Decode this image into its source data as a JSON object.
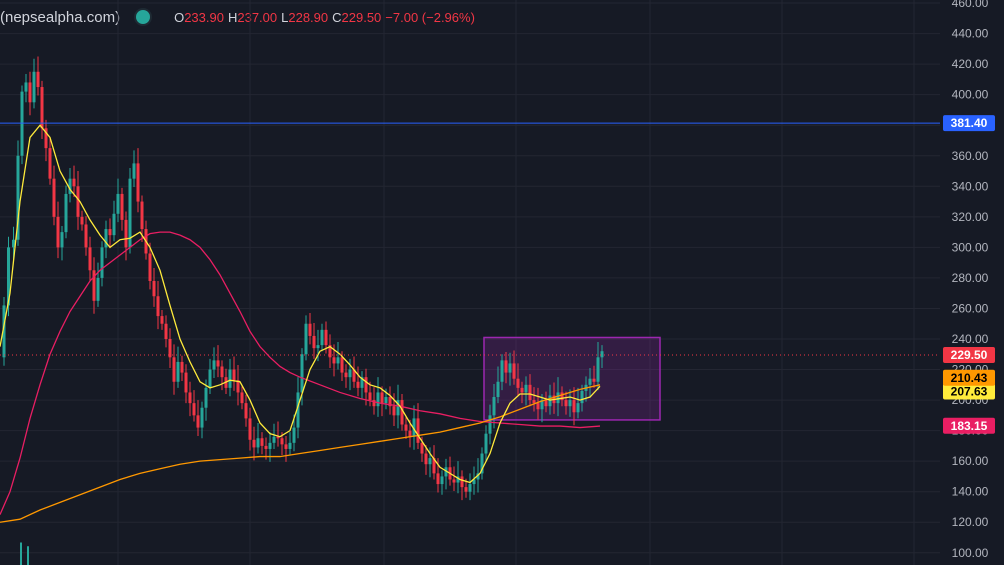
{
  "header": {
    "source": "(nepsealpha.com)",
    "open_key": "O",
    "open": "233.90",
    "high_key": "H",
    "high": "237.00",
    "low_key": "L",
    "low": "228.90",
    "close_key": "C",
    "close": "229.50",
    "change": "−7.00 (−2.96%)"
  },
  "chart_data": {
    "type": "candlestick",
    "y_axis": {
      "range": [
        92,
        462
      ],
      "ticks": [
        100,
        120,
        140,
        160,
        180,
        200,
        220,
        240,
        260,
        280,
        300,
        320,
        340,
        360,
        380,
        400,
        420,
        440,
        460
      ],
      "tick_labels": [
        "100.00",
        "120.00",
        "140.00",
        "160.00",
        "180.00",
        "200.00",
        "220.00",
        "240.00",
        "260.00",
        "280.00",
        "300.00",
        "320.00",
        "340.00",
        "360.00",
        "380.00",
        "400.00",
        "420.00",
        "440.00",
        "460.00"
      ],
      "position": "right"
    },
    "x_axis": {
      "labels": []
    },
    "horizontal_line": {
      "value": 381.4,
      "label": "381.40",
      "color": "#2962ff"
    },
    "last_price": {
      "value": 229.5,
      "label": "229.50",
      "color": "#f23645"
    },
    "ma_labels": [
      {
        "name": "fast_ma",
        "value": 207.63,
        "label": "207.63",
        "color": "#ffeb3b",
        "text_color": "#000000"
      },
      {
        "name": "slow_ma_orange",
        "value": 210.43,
        "label": "210.43",
        "color": "#ff9800",
        "text_color": "#000000"
      },
      {
        "name": "slow_ma_pink",
        "value": 183.15,
        "label": "183.15",
        "color": "#e91e63",
        "text_color": "#ffffff"
      }
    ],
    "rectangle": {
      "price_top": 241,
      "price_bottom": 187,
      "color": "#9c27b0"
    },
    "colors": {
      "up": "#26a69a",
      "down": "#f23645",
      "grid": "#232632",
      "axis_text": "#b2b5be"
    },
    "volume_bars": [
      {
        "value": 0.9,
        "direction": "up"
      },
      {
        "value": 0.75,
        "direction": "up"
      }
    ],
    "price_path": [
      [
        0,
        228
      ],
      [
        4,
        262
      ],
      [
        9,
        300
      ],
      [
        14,
        305
      ],
      [
        18,
        360
      ],
      [
        22,
        402
      ],
      [
        26,
        408
      ],
      [
        30,
        395
      ],
      [
        34,
        415
      ],
      [
        38,
        405
      ],
      [
        42,
        378
      ],
      [
        46,
        365
      ],
      [
        50,
        345
      ],
      [
        54,
        320
      ],
      [
        58,
        300
      ],
      [
        62,
        310
      ],
      [
        66,
        335
      ],
      [
        70,
        345
      ],
      [
        74,
        340
      ],
      [
        78,
        320
      ],
      [
        82,
        315
      ],
      [
        86,
        300
      ],
      [
        90,
        285
      ],
      [
        94,
        265
      ],
      [
        98,
        280
      ],
      [
        102,
        300
      ],
      [
        106,
        312
      ],
      [
        110,
        308
      ],
      [
        114,
        322
      ],
      [
        118,
        335
      ],
      [
        122,
        318
      ],
      [
        126,
        300
      ],
      [
        130,
        345
      ],
      [
        134,
        355
      ],
      [
        138,
        330
      ],
      [
        142,
        312
      ],
      [
        146,
        296
      ],
      [
        150,
        278
      ],
      [
        154,
        268
      ],
      [
        158,
        255
      ],
      [
        162,
        250
      ],
      [
        166,
        240
      ],
      [
        170,
        228
      ],
      [
        174,
        212
      ],
      [
        178,
        225
      ],
      [
        182,
        218
      ],
      [
        186,
        205
      ],
      [
        190,
        198
      ],
      [
        194,
        190
      ],
      [
        198,
        182
      ],
      [
        202,
        195
      ],
      [
        206,
        208
      ],
      [
        210,
        220
      ],
      [
        214,
        226
      ],
      [
        218,
        222
      ],
      [
        222,
        215
      ],
      [
        226,
        208
      ],
      [
        230,
        220
      ],
      [
        234,
        213
      ],
      [
        238,
        205
      ],
      [
        242,
        198
      ],
      [
        246,
        188
      ],
      [
        250,
        174
      ],
      [
        254,
        169
      ],
      [
        258,
        175
      ],
      [
        262,
        170
      ],
      [
        266,
        168
      ],
      [
        270,
        172
      ],
      [
        274,
        176
      ],
      [
        278,
        175
      ],
      [
        282,
        171
      ],
      [
        286,
        168
      ],
      [
        290,
        172
      ],
      [
        294,
        182
      ],
      [
        298,
        205
      ],
      [
        302,
        230
      ],
      [
        306,
        250
      ],
      [
        310,
        242
      ],
      [
        314,
        234
      ],
      [
        318,
        236
      ],
      [
        322,
        246
      ],
      [
        326,
        236
      ],
      [
        330,
        228
      ],
      [
        334,
        224
      ],
      [
        338,
        228
      ],
      [
        342,
        218
      ],
      [
        346,
        215
      ],
      [
        350,
        220
      ],
      [
        354,
        212
      ],
      [
        358,
        208
      ],
      [
        362,
        215
      ],
      [
        366,
        205
      ],
      [
        370,
        200
      ],
      [
        374,
        196
      ],
      [
        378,
        205
      ],
      [
        382,
        198
      ],
      [
        386,
        202
      ],
      [
        390,
        196
      ],
      [
        394,
        190
      ],
      [
        398,
        200
      ],
      [
        402,
        184
      ],
      [
        406,
        180
      ],
      [
        410,
        176
      ],
      [
        414,
        188
      ],
      [
        418,
        172
      ],
      [
        422,
        165
      ],
      [
        426,
        158
      ],
      [
        430,
        162
      ],
      [
        434,
        152
      ],
      [
        438,
        145
      ],
      [
        442,
        150
      ],
      [
        446,
        156
      ],
      [
        450,
        148
      ],
      [
        454,
        146
      ],
      [
        458,
        150
      ],
      [
        462,
        143
      ],
      [
        466,
        140
      ],
      [
        470,
        145
      ],
      [
        474,
        148
      ],
      [
        478,
        152
      ],
      [
        482,
        165
      ],
      [
        486,
        178
      ],
      [
        490,
        190
      ],
      [
        494,
        202
      ],
      [
        498,
        212
      ],
      [
        502,
        226
      ],
      [
        506,
        218
      ],
      [
        510,
        224
      ],
      [
        514,
        214
      ],
      [
        518,
        208
      ],
      [
        522,
        205
      ],
      [
        526,
        210
      ],
      [
        530,
        200
      ],
      [
        534,
        198
      ],
      [
        538,
        194
      ],
      [
        542,
        200
      ],
      [
        546,
        196
      ],
      [
        550,
        203
      ],
      [
        554,
        198
      ],
      [
        558,
        205
      ],
      [
        562,
        200
      ],
      [
        566,
        196
      ],
      [
        570,
        200
      ],
      [
        574,
        192
      ],
      [
        578,
        198
      ],
      [
        582,
        206
      ],
      [
        586,
        210
      ],
      [
        590,
        214
      ],
      [
        594,
        212
      ],
      [
        598,
        228
      ],
      [
        602,
        232
      ]
    ],
    "fast_ma_path": [
      [
        0,
        235
      ],
      [
        10,
        270
      ],
      [
        20,
        330
      ],
      [
        30,
        372
      ],
      [
        40,
        380
      ],
      [
        50,
        372
      ],
      [
        60,
        350
      ],
      [
        70,
        338
      ],
      [
        80,
        330
      ],
      [
        90,
        318
      ],
      [
        100,
        308
      ],
      [
        110,
        300
      ],
      [
        120,
        305
      ],
      [
        130,
        306
      ],
      [
        140,
        310
      ],
      [
        150,
        300
      ],
      [
        160,
        285
      ],
      [
        170,
        262
      ],
      [
        180,
        240
      ],
      [
        190,
        225
      ],
      [
        200,
        212
      ],
      [
        210,
        208
      ],
      [
        220,
        210
      ],
      [
        230,
        213
      ],
      [
        240,
        212
      ],
      [
        250,
        200
      ],
      [
        260,
        185
      ],
      [
        270,
        178
      ],
      [
        280,
        176
      ],
      [
        290,
        180
      ],
      [
        300,
        200
      ],
      [
        310,
        220
      ],
      [
        320,
        232
      ],
      [
        330,
        235
      ],
      [
        340,
        230
      ],
      [
        350,
        223
      ],
      [
        360,
        215
      ],
      [
        370,
        210
      ],
      [
        380,
        208
      ],
      [
        390,
        203
      ],
      [
        400,
        196
      ],
      [
        410,
        185
      ],
      [
        420,
        175
      ],
      [
        430,
        165
      ],
      [
        440,
        156
      ],
      [
        450,
        152
      ],
      [
        460,
        148
      ],
      [
        470,
        146
      ],
      [
        480,
        152
      ],
      [
        490,
        165
      ],
      [
        500,
        185
      ],
      [
        510,
        198
      ],
      [
        520,
        204
      ],
      [
        530,
        204
      ],
      [
        540,
        202
      ],
      [
        550,
        200
      ],
      [
        560,
        201
      ],
      [
        570,
        202
      ],
      [
        580,
        200
      ],
      [
        590,
        202
      ],
      [
        600,
        209
      ]
    ],
    "slow_ma_orange_path": [
      [
        0,
        120
      ],
      [
        20,
        122
      ],
      [
        40,
        128
      ],
      [
        60,
        133
      ],
      [
        80,
        138
      ],
      [
        100,
        143
      ],
      [
        120,
        148
      ],
      [
        140,
        152
      ],
      [
        160,
        155
      ],
      [
        180,
        158
      ],
      [
        200,
        160
      ],
      [
        220,
        161
      ],
      [
        240,
        162
      ],
      [
        260,
        163
      ],
      [
        280,
        163
      ],
      [
        300,
        165
      ],
      [
        320,
        167
      ],
      [
        340,
        169
      ],
      [
        360,
        171
      ],
      [
        380,
        173
      ],
      [
        400,
        175
      ],
      [
        420,
        177
      ],
      [
        440,
        179
      ],
      [
        460,
        182
      ],
      [
        480,
        185
      ],
      [
        500,
        189
      ],
      [
        520,
        194
      ],
      [
        540,
        199
      ],
      [
        560,
        203
      ],
      [
        580,
        207
      ],
      [
        600,
        210
      ]
    ],
    "slow_ma_pink_path": [
      [
        0,
        125
      ],
      [
        10,
        140
      ],
      [
        20,
        162
      ],
      [
        30,
        188
      ],
      [
        40,
        210
      ],
      [
        50,
        230
      ],
      [
        60,
        245
      ],
      [
        70,
        258
      ],
      [
        80,
        268
      ],
      [
        90,
        278
      ],
      [
        100,
        285
      ],
      [
        110,
        290
      ],
      [
        120,
        295
      ],
      [
        130,
        300
      ],
      [
        140,
        305
      ],
      [
        150,
        309
      ],
      [
        160,
        310
      ],
      [
        170,
        310
      ],
      [
        180,
        308
      ],
      [
        190,
        305
      ],
      [
        200,
        300
      ],
      [
        210,
        292
      ],
      [
        220,
        282
      ],
      [
        230,
        270
      ],
      [
        240,
        258
      ],
      [
        250,
        245
      ],
      [
        260,
        235
      ],
      [
        270,
        228
      ],
      [
        280,
        222
      ],
      [
        290,
        218
      ],
      [
        300,
        215
      ],
      [
        320,
        210
      ],
      [
        340,
        205
      ],
      [
        360,
        201
      ],
      [
        380,
        198
      ],
      [
        400,
        196
      ],
      [
        420,
        193
      ],
      [
        440,
        191
      ],
      [
        460,
        188
      ],
      [
        480,
        186
      ],
      [
        500,
        185
      ],
      [
        520,
        184
      ],
      [
        540,
        183
      ],
      [
        560,
        183
      ],
      [
        580,
        182
      ],
      [
        600,
        183
      ]
    ]
  }
}
